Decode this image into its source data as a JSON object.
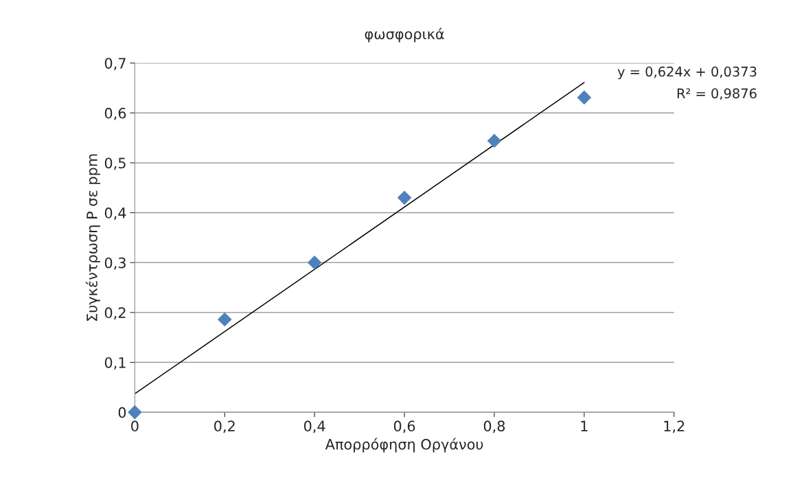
{
  "chart_data": {
    "type": "scatter",
    "title": "φωσφορικά",
    "xlabel": "Απορρόφηση Οργάνου",
    "ylabel": "Συγκέντρωση P σε ppm",
    "x": [
      0,
      0.2,
      0.4,
      0.6,
      0.8,
      1
    ],
    "series": [
      {
        "color": "#4f81bd",
        "marker": "diamond",
        "values": [
          0,
          0.186,
          0.3,
          0.43,
          0.544,
          0.631
        ]
      },
      {
        "type": "line",
        "color": "#000000",
        "marker": "none",
        "line_style": "solid",
        "x": [
          0,
          1
        ],
        "values": [
          0.037,
          0.661
        ]
      }
    ],
    "annotations": [
      "y = 0,624x + 0,0373",
      "R² = 0,9876"
    ],
    "xlim": [
      0,
      1.2
    ],
    "ylim": [
      0,
      0.7
    ],
    "xticks": [
      0,
      {
        "value": 0.2,
        "label": "0,2"
      },
      {
        "value": 0.4,
        "label": "0,4"
      },
      {
        "value": 0.6,
        "label": "0,6"
      },
      {
        "value": 0.8,
        "label": "0,8"
      },
      1,
      {
        "value": 1.2,
        "label": "1,2"
      }
    ],
    "yticks": [
      0,
      {
        "value": 0.1,
        "label": "0,1"
      },
      {
        "value": 0.2,
        "label": "0,2"
      },
      {
        "value": 0.3,
        "label": "0,3"
      },
      {
        "value": 0.4,
        "label": "0,4"
      },
      {
        "value": 0.5,
        "label": "0,5"
      },
      {
        "value": 0.6,
        "label": "0,6"
      },
      {
        "value": 0.7,
        "label": "0,7"
      }
    ],
    "grid": "y",
    "legend": false
  }
}
